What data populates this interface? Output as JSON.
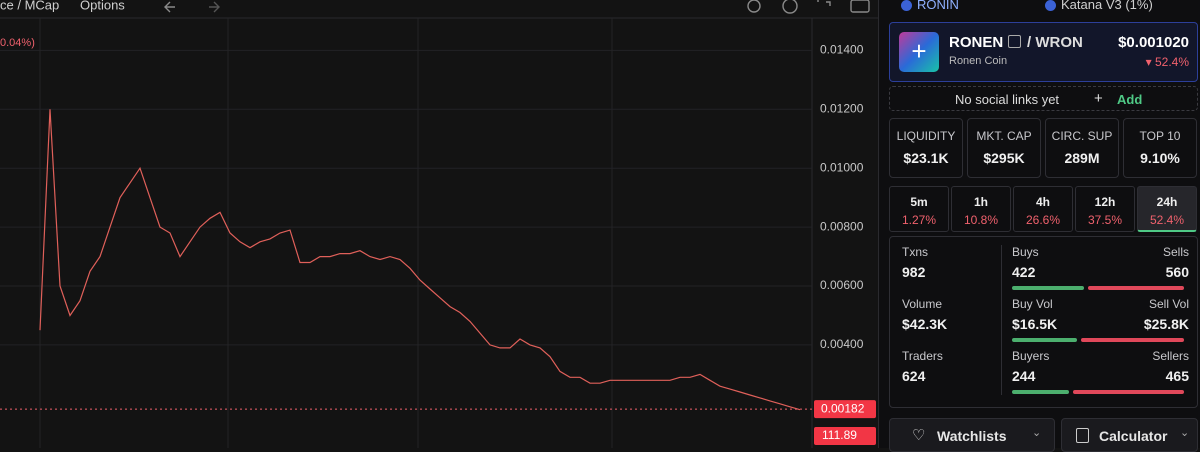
{
  "toolbar": {
    "price_mcap": "ce / MCap",
    "options": "Options",
    "change": "0.04%)"
  },
  "chart_data": {
    "type": "line",
    "color": "#e0605a",
    "ylim": [
      0.0005,
      0.0151
    ],
    "yticks": [
      {
        "value": 0.014,
        "label": "0.01400"
      },
      {
        "value": 0.012,
        "label": "0.01200"
      },
      {
        "value": 0.01,
        "label": "0.01000"
      },
      {
        "value": 0.008,
        "label": "0.00800"
      },
      {
        "value": 0.006,
        "label": "0.00600"
      },
      {
        "value": 0.004,
        "label": "0.00400"
      }
    ],
    "grid": true,
    "values": [
      null,
      null,
      null,
      null,
      0.0045,
      0.012,
      0.006,
      0.005,
      0.0055,
      0.0065,
      0.007,
      0.008,
      0.009,
      0.0095,
      0.01,
      0.009,
      0.008,
      0.0078,
      0.007,
      0.0075,
      0.008,
      0.0083,
      0.0085,
      0.0078,
      0.0075,
      0.0073,
      0.0075,
      0.0076,
      0.0078,
      0.0079,
      0.0068,
      0.0068,
      0.007,
      0.007,
      0.0071,
      0.0071,
      0.0072,
      0.007,
      0.0069,
      0.007,
      0.0069,
      0.0066,
      0.0062,
      0.0059,
      0.0056,
      0.0053,
      0.0051,
      0.0048,
      0.0044,
      0.004,
      0.0039,
      0.0039,
      0.0042,
      0.004,
      0.0039,
      0.0036,
      0.0031,
      0.0029,
      0.0029,
      0.0027,
      0.0027,
      0.0028,
      0.0028,
      0.0028,
      0.0028,
      0.0028,
      0.0028,
      0.0028,
      0.0029,
      0.0029,
      0.003,
      0.0028,
      0.0026,
      0.0025,
      0.0024,
      0.0023,
      0.0022,
      0.0021,
      0.002,
      0.0019,
      0.0018
    ],
    "last_price": 0.00182,
    "volume_label": 111.89
  },
  "header": {
    "chain": "RONIN",
    "dex": "Katana V3 (1%)"
  },
  "token": {
    "symbol": "RONEN",
    "pair": "/ WRON",
    "name": "Ronen Coin",
    "price": "$0.001020",
    "change": "52.4%"
  },
  "social": {
    "text": "No social links yet",
    "action": "Add"
  },
  "stats": [
    {
      "label": "LIQUIDITY",
      "value": "$23.1K"
    },
    {
      "label": "MKT. CAP",
      "value": "$295K"
    },
    {
      "label": "CIRC. SUP",
      "value": "289M"
    },
    {
      "label": "TOP 10",
      "value": "9.10%"
    }
  ],
  "timeframes": [
    {
      "label": "5m",
      "change": "1.27%"
    },
    {
      "label": "1h",
      "change": "10.8%"
    },
    {
      "label": "4h",
      "change": "26.6%"
    },
    {
      "label": "12h",
      "change": "37.5%"
    },
    {
      "label": "24h",
      "change": "52.4%"
    }
  ],
  "activity": {
    "txns": {
      "label": "Txns",
      "value": 982
    },
    "volume": {
      "label": "Volume",
      "value": "$42.3K"
    },
    "traders": {
      "label": "Traders",
      "value": 624
    },
    "buys": {
      "label": "Buys",
      "value": 422
    },
    "sells": {
      "label": "Sells",
      "value": 560
    },
    "buy_vol": {
      "label": "Buy Vol",
      "value": 16500,
      "value_label": "$16.5K"
    },
    "sell_vol": {
      "label": "Sell Vol",
      "value": 25800,
      "value_label": "$25.8K"
    },
    "buyers": {
      "label": "Buyers",
      "value": 244
    },
    "sellers": {
      "label": "Sellers",
      "value": 465
    }
  },
  "buttons": {
    "watchlists": "Watchlists",
    "calculator": "Calculator"
  }
}
